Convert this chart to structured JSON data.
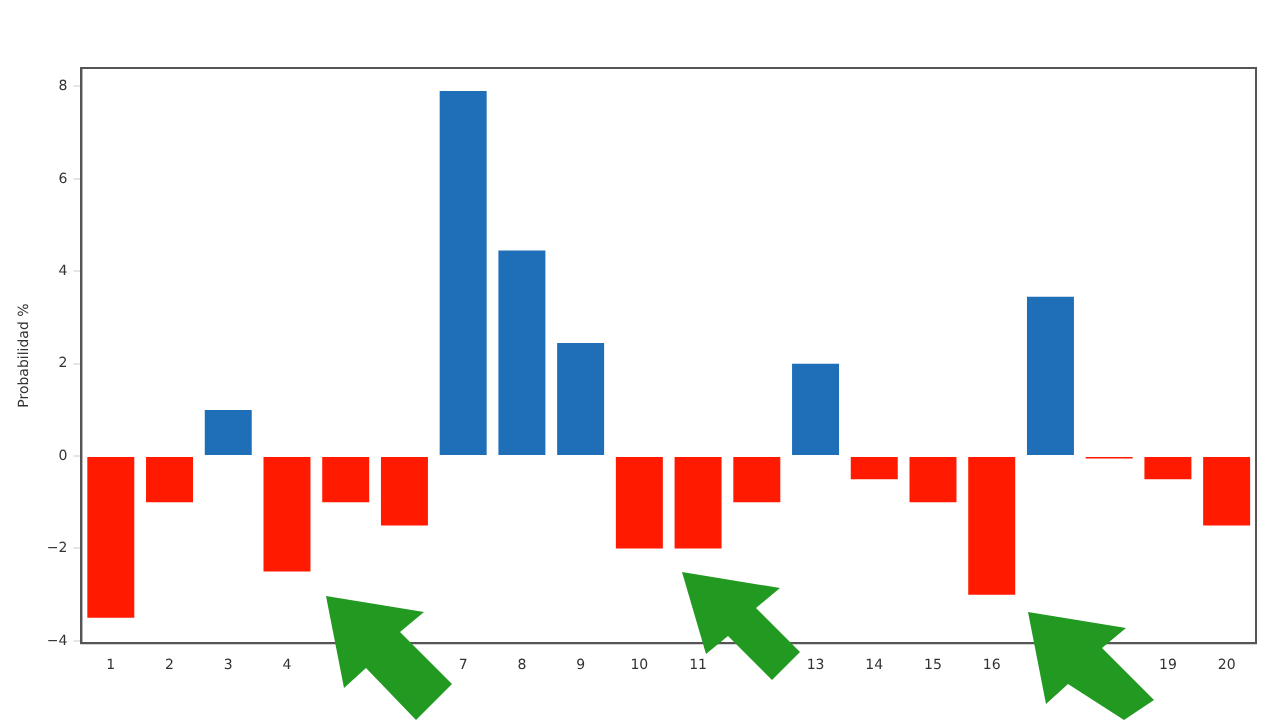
{
  "chart_data": {
    "type": "bar",
    "ylabel": "Probabilidad %",
    "categories": [
      "1",
      "2",
      "3",
      "4",
      null,
      null,
      "7",
      "8",
      "9",
      "10",
      "11",
      null,
      "13",
      "14",
      "15",
      "16",
      null,
      null,
      "19",
      "20"
    ],
    "values": [
      -3.5,
      -1,
      1,
      -2.5,
      -1,
      -1.5,
      7.9,
      4.45,
      2.45,
      -2,
      -2,
      -1,
      2,
      -0.5,
      -1,
      -3,
      3.45,
      -0.05,
      -0.5,
      -1.5
    ],
    "colors": [
      "#ff1a00",
      "#ff1a00",
      "#1f6eb8",
      "#ff1a00",
      "#ff1a00",
      "#ff1a00",
      "#1f6eb8",
      "#1f6eb8",
      "#1f6eb8",
      "#ff1a00",
      "#ff1a00",
      "#ff1a00",
      "#1f6eb8",
      "#ff1a00",
      "#ff1a00",
      "#ff1a00",
      "#1f6eb8",
      "#ff1a00",
      "#ff1a00",
      "#ff1a00"
    ],
    "ylim": [
      -4.05,
      8.4
    ],
    "yticks": [
      -4,
      -2,
      0,
      2,
      4,
      6,
      8
    ],
    "grid": false,
    "legend": false
  }
}
